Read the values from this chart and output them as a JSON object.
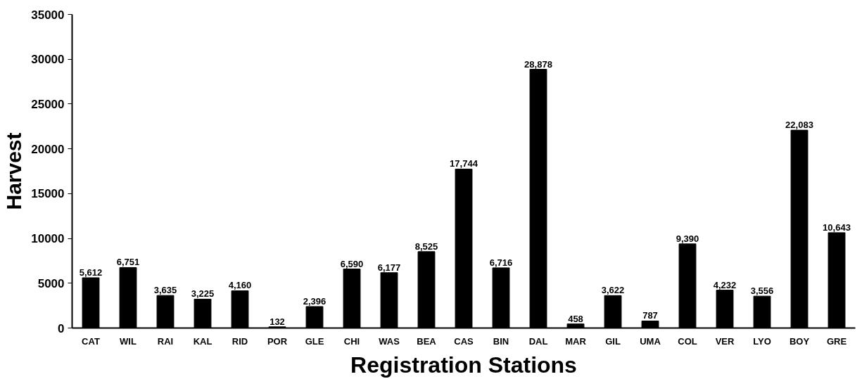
{
  "chart_data": {
    "type": "bar",
    "xlabel": "Registration Stations",
    "ylabel": "Harvest",
    "categories": [
      "CAT",
      "WIL",
      "RAI",
      "KAL",
      "RID",
      "POR",
      "GLE",
      "CHI",
      "WAS",
      "BEA",
      "CAS",
      "BIN",
      "DAL",
      "MAR",
      "GIL",
      "UMA",
      "COL",
      "VER",
      "LYO",
      "BOY",
      "GRE"
    ],
    "values": [
      5612,
      6751,
      3635,
      3225,
      4160,
      132,
      2396,
      6590,
      6177,
      8525,
      17744,
      6716,
      28878,
      458,
      3622,
      787,
      9390,
      4232,
      3556,
      22083,
      10643
    ],
    "value_labels": [
      "5,612",
      "6,751",
      "3,635",
      "3,225",
      "4,160",
      "132",
      "2,396",
      "6,590",
      "6,177",
      "8,525",
      "17,744",
      "6,716",
      "28,878",
      "458",
      "3,622",
      "787",
      "9,390",
      "4,232",
      "3,556",
      "22,083",
      "10,643"
    ],
    "color": "#000000",
    "ylim": [
      0,
      35000
    ],
    "yticks": [
      0,
      5000,
      10000,
      15000,
      20000,
      25000,
      30000,
      35000
    ],
    "grid": false
  }
}
